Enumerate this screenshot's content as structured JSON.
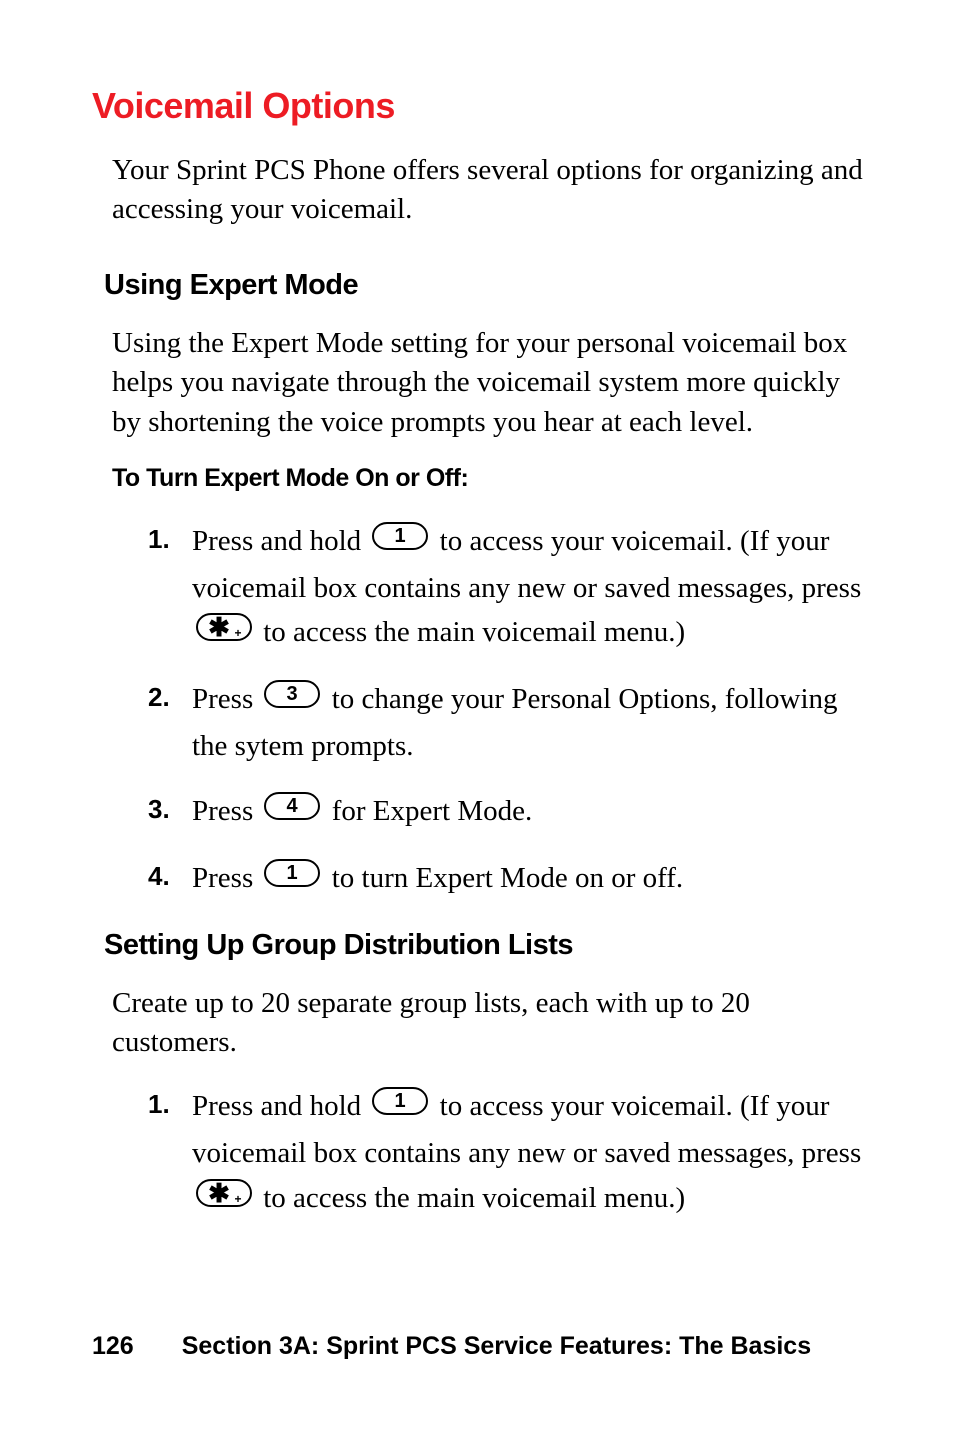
{
  "title": "Voicemail Options",
  "intro": "Your Sprint PCS Phone offers several options for organizing and accessing your voicemail.",
  "sections": [
    {
      "heading": "Using Expert Mode",
      "body": "Using the Expert Mode setting for your personal voicemail box helps you navigate through the voicemail system more quickly by shortening the voice prompts you hear at each level.",
      "subheading": "To Turn Expert Mode On or Off:",
      "steps": [
        {
          "n": "1.",
          "pre": "Press and hold ",
          "key": "1",
          "post": " to access your voicemail. (If your voicemail box contains any new or saved messages, press ",
          "key2": "*",
          "post2": " to access the main voicemail menu.)"
        },
        {
          "n": "2.",
          "pre": "Press ",
          "key": "3",
          "post": " to change your Personal Options, following the sytem prompts."
        },
        {
          "n": "3.",
          "pre": "Press ",
          "key": "4",
          "post": " for Expert Mode."
        },
        {
          "n": "4.",
          "pre": "Press ",
          "key": "1",
          "post": " to turn Expert Mode on or off."
        }
      ]
    },
    {
      "heading": "Setting Up Group Distribution Lists",
      "body": "Create up to 20 separate group lists, each with up to 20 customers.",
      "steps": [
        {
          "n": "1.",
          "pre": "Press and hold ",
          "key": "1",
          "post": " to access your voicemail. (If your voicemail box contains any new or saved messages, press ",
          "key2": "*",
          "post2": " to access the main voicemail menu.)"
        }
      ]
    }
  ],
  "footer": {
    "page": "126",
    "section": "Section 3A: Sprint PCS Service Features: The Basics"
  },
  "style": {
    "title_color": "#ed1c24",
    "text_color": "#000000",
    "bg_color": "#ffffff",
    "key_stroke": "#000000",
    "key_width": 56,
    "key_height": 28,
    "key_rx": 14
  }
}
